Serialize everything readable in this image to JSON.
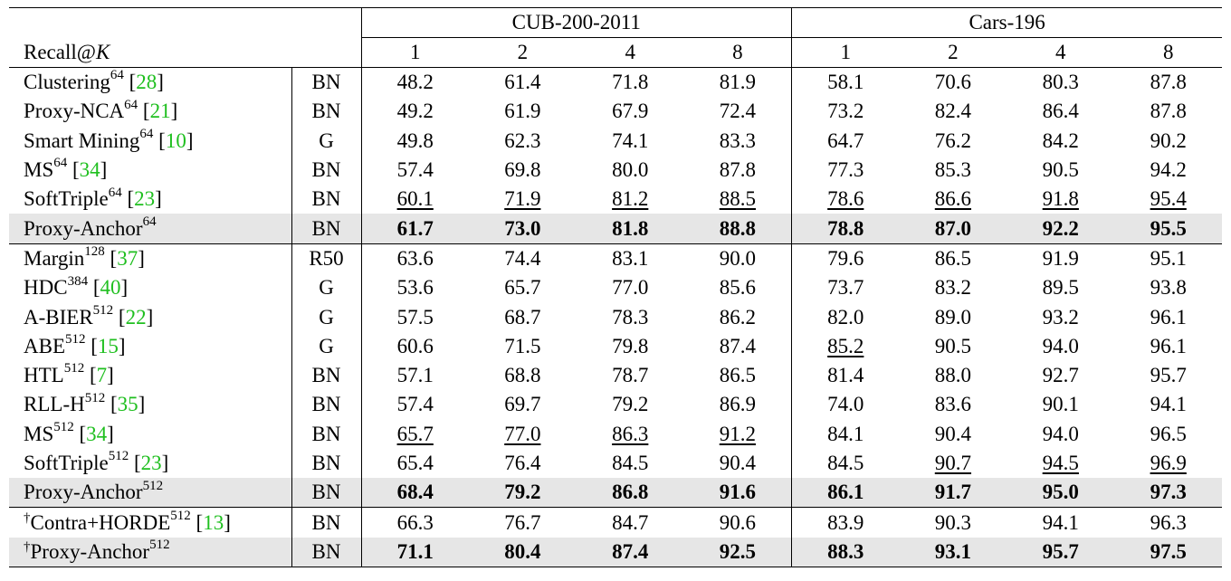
{
  "header": {
    "metric_label": "Recall@K",
    "datasets": [
      "CUB-200-2011",
      "Cars-196"
    ],
    "k_values": [
      "1",
      "2",
      "4",
      "8"
    ]
  },
  "rows": [
    {
      "name": "Clustering",
      "sup": "64",
      "cite": "28",
      "bb": "BN",
      "vals": [
        "48.2",
        "61.4",
        "71.8",
        "81.9",
        "58.1",
        "70.6",
        "80.3",
        "87.8"
      ],
      "bold": [],
      "under": []
    },
    {
      "name": "Proxy-NCA",
      "sup": "64",
      "cite": "21",
      "bb": "BN",
      "vals": [
        "49.2",
        "61.9",
        "67.9",
        "72.4",
        "73.2",
        "82.4",
        "86.4",
        "87.8"
      ],
      "bold": [],
      "under": []
    },
    {
      "name": "Smart Mining",
      "sup": "64",
      "cite": "10",
      "bb": "G",
      "vals": [
        "49.8",
        "62.3",
        "74.1",
        "83.3",
        "64.7",
        "76.2",
        "84.2",
        "90.2"
      ],
      "bold": [],
      "under": []
    },
    {
      "name": "MS",
      "sup": "64",
      "cite": "34",
      "bb": "BN",
      "vals": [
        "57.4",
        "69.8",
        "80.0",
        "87.8",
        "77.3",
        "85.3",
        "90.5",
        "94.2"
      ],
      "bold": [],
      "under": []
    },
    {
      "name": "SoftTriple",
      "sup": "64",
      "cite": "23",
      "bb": "BN",
      "vals": [
        "60.1",
        "71.9",
        "81.2",
        "88.5",
        "78.6",
        "86.6",
        "91.8",
        "95.4"
      ],
      "bold": [],
      "under": [
        0,
        1,
        2,
        3,
        4,
        5,
        6,
        7
      ]
    },
    {
      "name": "Proxy-Anchor",
      "sup": "64",
      "cite": "",
      "bb": "BN",
      "vals": [
        "61.7",
        "73.0",
        "81.8",
        "88.8",
        "78.8",
        "87.0",
        "92.2",
        "95.5"
      ],
      "bold": [
        0,
        1,
        2,
        3,
        4,
        5,
        6,
        7
      ],
      "under": [],
      "hl": true
    },
    {
      "name": "Margin",
      "sup": "128",
      "cite": "37",
      "bb": "R50",
      "vals": [
        "63.6",
        "74.4",
        "83.1",
        "90.0",
        "79.6",
        "86.5",
        "91.9",
        "95.1"
      ],
      "bold": [],
      "under": [],
      "group": true
    },
    {
      "name": "HDC",
      "sup": "384",
      "cite": "40",
      "bb": "G",
      "vals": [
        "53.6",
        "65.7",
        "77.0",
        "85.6",
        "73.7",
        "83.2",
        "89.5",
        "93.8"
      ],
      "bold": [],
      "under": []
    },
    {
      "name": "A-BIER",
      "sup": "512",
      "cite": "22",
      "bb": "G",
      "vals": [
        "57.5",
        "68.7",
        "78.3",
        "86.2",
        "82.0",
        "89.0",
        "93.2",
        "96.1"
      ],
      "bold": [],
      "under": []
    },
    {
      "name": "ABE",
      "sup": "512",
      "cite": "15",
      "bb": "G",
      "vals": [
        "60.6",
        "71.5",
        "79.8",
        "87.4",
        "85.2",
        "90.5",
        "94.0",
        "96.1"
      ],
      "bold": [],
      "under": [
        4
      ]
    },
    {
      "name": "HTL",
      "sup": "512",
      "cite": "7",
      "bb": "BN",
      "vals": [
        "57.1",
        "68.8",
        "78.7",
        "86.5",
        "81.4",
        "88.0",
        "92.7",
        "95.7"
      ],
      "bold": [],
      "under": []
    },
    {
      "name": "RLL-H",
      "sup": "512",
      "cite": "35",
      "bb": "BN",
      "vals": [
        "57.4",
        "69.7",
        "79.2",
        "86.9",
        "74.0",
        "83.6",
        "90.1",
        "94.1"
      ],
      "bold": [],
      "under": []
    },
    {
      "name": "MS",
      "sup": "512",
      "cite": "34",
      "bb": "BN",
      "vals": [
        "65.7",
        "77.0",
        "86.3",
        "91.2",
        "84.1",
        "90.4",
        "94.0",
        "96.5"
      ],
      "bold": [],
      "under": [
        0,
        1,
        2,
        3
      ]
    },
    {
      "name": "SoftTriple",
      "sup": "512",
      "cite": "23",
      "bb": "BN",
      "vals": [
        "65.4",
        "76.4",
        "84.5",
        "90.4",
        "84.5",
        "90.7",
        "94.5",
        "96.9"
      ],
      "bold": [],
      "under": [
        5,
        6,
        7
      ]
    },
    {
      "name": "Proxy-Anchor",
      "sup": "512",
      "cite": "",
      "bb": "BN",
      "vals": [
        "68.4",
        "79.2",
        "86.8",
        "91.6",
        "86.1",
        "91.7",
        "95.0",
        "97.3"
      ],
      "bold": [
        0,
        1,
        2,
        3,
        4,
        5,
        6,
        7
      ],
      "under": [],
      "hl": true
    },
    {
      "name": "Contra+HORDE",
      "sup": "512",
      "cite": "13",
      "dagger": "†",
      "bb": "BN",
      "vals": [
        "66.3",
        "76.7",
        "84.7",
        "90.6",
        "83.9",
        "90.3",
        "94.1",
        "96.3"
      ],
      "bold": [],
      "under": [],
      "group": true
    },
    {
      "name": "Proxy-Anchor",
      "sup": "512",
      "cite": "",
      "dagger": "†",
      "bb": "BN",
      "vals": [
        "71.1",
        "80.4",
        "87.4",
        "92.5",
        "88.3",
        "93.1",
        "95.7",
        "97.5"
      ],
      "bold": [
        0,
        1,
        2,
        3,
        4,
        5,
        6,
        7
      ],
      "under": [],
      "hl": true,
      "last": true
    }
  ]
}
